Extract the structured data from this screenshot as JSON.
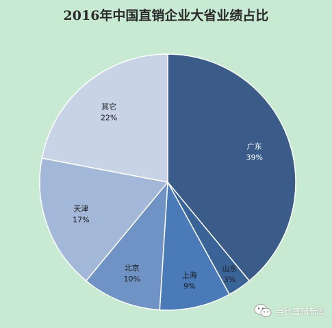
{
  "chart_data": {
    "type": "pie",
    "title": "2016年中国直销企业大省业绩占比",
    "slices": [
      {
        "label": "广东",
        "value": 39,
        "display": "39%",
        "color": "#3b5b88",
        "text_color": "light"
      },
      {
        "label": "山东",
        "value": 3,
        "display": "3%",
        "color": "#3a6498",
        "text_color": "dark"
      },
      {
        "label": "上海",
        "value": 9,
        "display": "9%",
        "color": "#4a7ab8",
        "text_color": "dark"
      },
      {
        "label": "北京",
        "value": 10,
        "display": "10%",
        "color": "#6f93c4",
        "text_color": "dark"
      },
      {
        "label": "天津",
        "value": 17,
        "display": "17%",
        "color": "#a3b8d8",
        "text_color": "dark"
      },
      {
        "label": "其它",
        "value": 22,
        "display": "22%",
        "color": "#c8d3e6",
        "text_color": "dark"
      }
    ],
    "start_angle_deg": 0,
    "direction": "clockwise",
    "legend": "none"
  },
  "watermark": {
    "text": "当代直销新闻",
    "icon": "wechat-icon"
  }
}
